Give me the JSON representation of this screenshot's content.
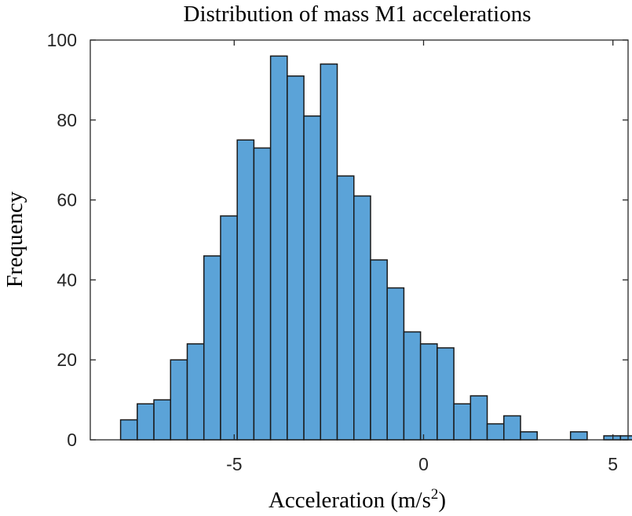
{
  "chart_data": {
    "type": "bar",
    "title": "Distribution of mass M1 accelerations",
    "xlabel": "Acceleration (m/s",
    "xlabel_superscript": "2",
    "xlabel_suffix": ")",
    "ylabel": "Frequency",
    "xlim": [
      -8.8,
      5.4
    ],
    "ylim": [
      0,
      100
    ],
    "xticks": [
      -5,
      0,
      5
    ],
    "xtick_labels": [
      "-5",
      "0",
      "5"
    ],
    "yticks": [
      0,
      20,
      40,
      60,
      80,
      100
    ],
    "ytick_labels": [
      "0",
      "20",
      "40",
      "60",
      "80",
      "100"
    ],
    "bin_width": 0.44,
    "bin_edges_start": -8.0,
    "values": [
      5,
      9,
      10,
      20,
      24,
      46,
      56,
      75,
      73,
      96,
      91,
      81,
      94,
      66,
      61,
      45,
      38,
      27,
      24,
      23,
      9,
      11,
      4,
      6,
      2,
      0,
      0,
      2,
      0,
      1,
      1
    ],
    "bar_color": "#5BA3D8",
    "edge_color": "#1a1a1a",
    "grid": false,
    "box": true
  }
}
